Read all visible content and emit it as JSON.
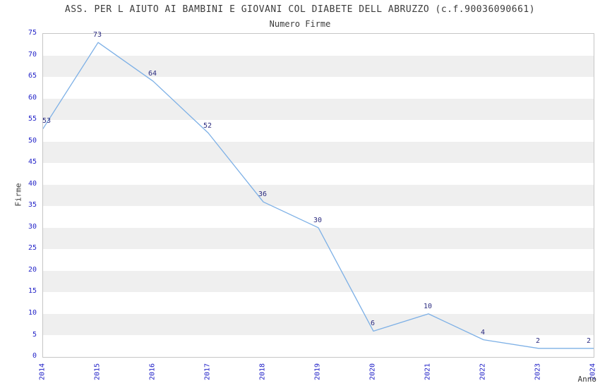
{
  "chart_data": {
    "type": "line",
    "title": "ASS. PER L AIUTO AI BAMBINI E GIOVANI COL DIABETE DELL ABRUZZO (c.f.90036090661)",
    "subtitle": "Numero Firme",
    "xlabel": "Anno",
    "ylabel": "Firme",
    "categories": [
      "2014",
      "2015",
      "2016",
      "2017",
      "2018",
      "2019",
      "2020",
      "2021",
      "2022",
      "2023",
      "2024"
    ],
    "values": [
      53,
      73,
      64,
      52,
      36,
      30,
      6,
      10,
      4,
      2,
      2
    ],
    "series": [
      {
        "name": "Numero Firme",
        "values": [
          53,
          73,
          64,
          52,
          36,
          30,
          6,
          10,
          4,
          2,
          2
        ]
      }
    ],
    "ylim": [
      0,
      75
    ],
    "ytick_step": 5,
    "yticks": [
      0,
      5,
      10,
      15,
      20,
      25,
      30,
      35,
      40,
      45,
      50,
      55,
      60,
      65,
      70,
      75
    ],
    "grid": "alternating horizontal gray bands every 5 units",
    "legend": "none",
    "data_labels": true,
    "xtick_rotation_deg": 90,
    "colors": {
      "line": "#7db0e6",
      "data_label": "#2b2b80",
      "tick_label": "#2424c8",
      "band_gray": "#efefef",
      "band_white": "#ffffff",
      "axis_border": "#c6c6c6",
      "title_text": "#3b3b3b",
      "background": "#ffffff"
    }
  }
}
